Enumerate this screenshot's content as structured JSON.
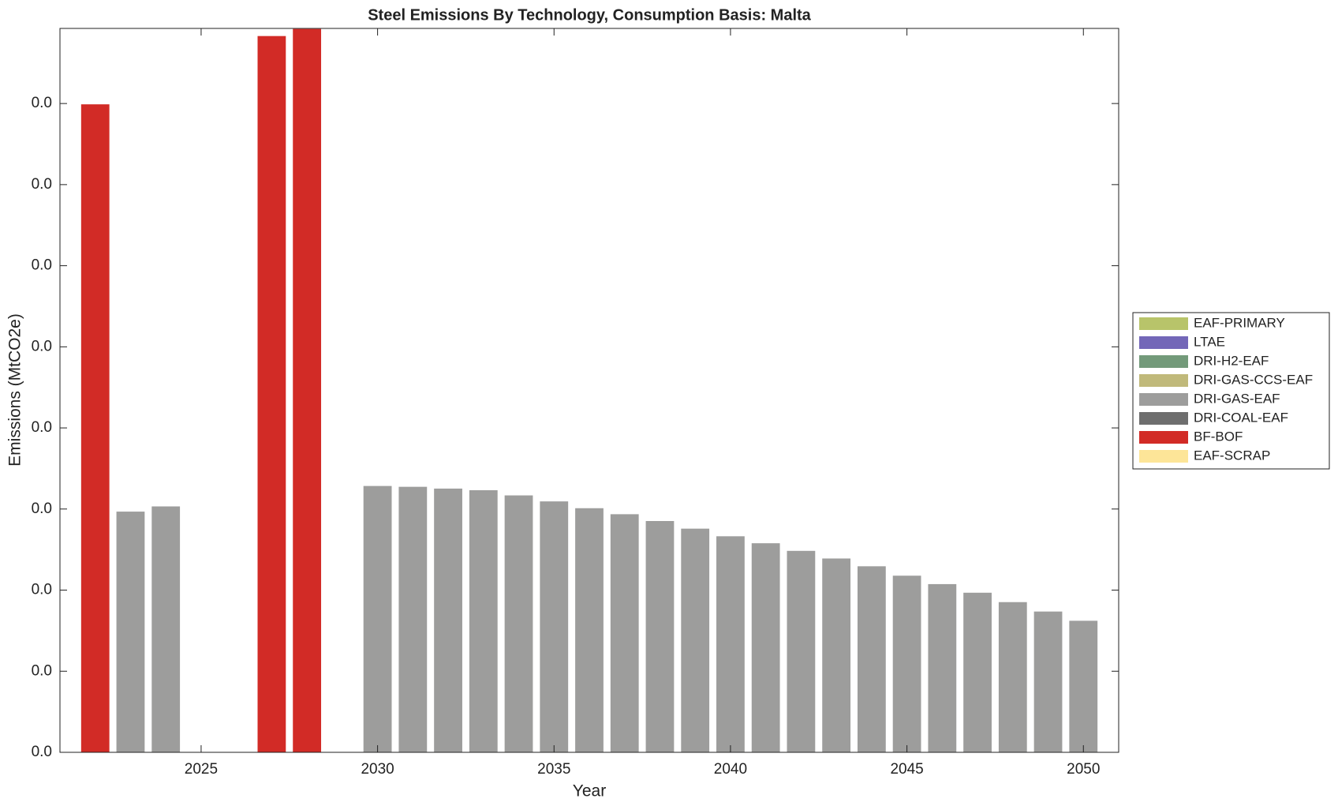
{
  "chart_data": {
    "type": "bar",
    "stacked": true,
    "title": "Steel Emissions By Technology, Consumption Basis: Malta",
    "x_label": "Year",
    "y_label": "Emissions (MtCO2e)",
    "x": [
      2022,
      2023,
      2024,
      2025,
      2026,
      2027,
      2028,
      2029,
      2030,
      2031,
      2032,
      2033,
      2034,
      2035,
      2036,
      2037,
      2038,
      2039,
      2040,
      2041,
      2042,
      2043,
      2044,
      2045,
      2046,
      2047,
      2048,
      2049,
      2050
    ],
    "series": [
      {
        "name": "EAF-PRIMARY",
        "color": "#b8c46a",
        "values": [
          0,
          0,
          0,
          0,
          0,
          0,
          0,
          0,
          0,
          0,
          0,
          0,
          0,
          0,
          0,
          0,
          0,
          0,
          0,
          0,
          0,
          0,
          0,
          0,
          0,
          0,
          0,
          0,
          0
        ]
      },
      {
        "name": "LTAE",
        "color": "#7367b8",
        "values": [
          0,
          0,
          0,
          0,
          0,
          0,
          0,
          0,
          0,
          0,
          0,
          0,
          0,
          0,
          0,
          0,
          0,
          0,
          0,
          0,
          0,
          0,
          0,
          0,
          0,
          0,
          0,
          0,
          0
        ]
      },
      {
        "name": "DRI-H2-EAF",
        "color": "#739a7a",
        "values": [
          0,
          0,
          0,
          0,
          0,
          0,
          0,
          0,
          0,
          0,
          0,
          0,
          0,
          0,
          0,
          0,
          0,
          0,
          0,
          0,
          0,
          0,
          0,
          0,
          0,
          0,
          0,
          0,
          0
        ]
      },
      {
        "name": "DRI-GAS-CCS-EAF",
        "color": "#c0b97a",
        "values": [
          0,
          0,
          0,
          0,
          0,
          0,
          0,
          0,
          0,
          0,
          0,
          0,
          0,
          0,
          0,
          0,
          0,
          0,
          0,
          0,
          0,
          0,
          0,
          0,
          0,
          0,
          0,
          0,
          0
        ]
      },
      {
        "name": "DRI-GAS-EAF",
        "color": "#9d9d9c",
        "values": [
          0,
          0.01484,
          0.01516,
          0,
          0,
          0,
          0,
          0,
          0.01642,
          0.01637,
          0.01626,
          0.01616,
          0.01584,
          0.01547,
          0.01505,
          0.01468,
          0.01426,
          0.01379,
          0.01332,
          0.01289,
          0.01242,
          0.01195,
          0.01147,
          0.01089,
          0.01037,
          0.00984,
          0.00926,
          0.00868,
          0.00811
        ]
      },
      {
        "name": "DRI-COAL-EAF",
        "color": "#6e6e6e",
        "values": [
          0,
          0,
          0,
          0,
          0,
          0,
          0,
          0,
          0,
          0,
          0,
          0,
          0,
          0,
          0,
          0,
          0,
          0,
          0,
          0,
          0,
          0,
          0,
          0,
          0,
          0,
          0,
          0,
          0
        ]
      },
      {
        "name": "BF-BOF",
        "color": "#d22b26",
        "values": [
          0.03995,
          0,
          0,
          0,
          0,
          0.04416,
          0.0446,
          0,
          0,
          0,
          0,
          0,
          0,
          0,
          0,
          0,
          0,
          0,
          0,
          0,
          0,
          0,
          0,
          0,
          0,
          0,
          0,
          0,
          0
        ]
      },
      {
        "name": "EAF-SCRAP",
        "color": "#fde598",
        "values": [
          0,
          0,
          0,
          0,
          0,
          0,
          0,
          0,
          0,
          0,
          0,
          0,
          0,
          0,
          0,
          0,
          0,
          0,
          0,
          0,
          0,
          0,
          0,
          0,
          0,
          0,
          0,
          0,
          0
        ]
      }
    ],
    "bar_width": 0.8,
    "xlim": [
      2021,
      2051
    ],
    "xticks": [
      2025,
      2030,
      2035,
      2040,
      2045,
      2050
    ],
    "ylim": [
      0,
      0.04463
    ],
    "yticks": [
      {
        "value": 0,
        "label": "0.0"
      },
      {
        "value": 0.005,
        "label": "0.0"
      },
      {
        "value": 0.01,
        "label": "0.0"
      },
      {
        "value": 0.015,
        "label": "0.0"
      },
      {
        "value": 0.02,
        "label": "0.0"
      },
      {
        "value": 0.025,
        "label": "0.0"
      },
      {
        "value": 0.03,
        "label": "0.0"
      },
      {
        "value": 0.035,
        "label": "0.0"
      },
      {
        "value": 0.04,
        "label": "0.0"
      }
    ],
    "legend": "right",
    "grid": false
  }
}
